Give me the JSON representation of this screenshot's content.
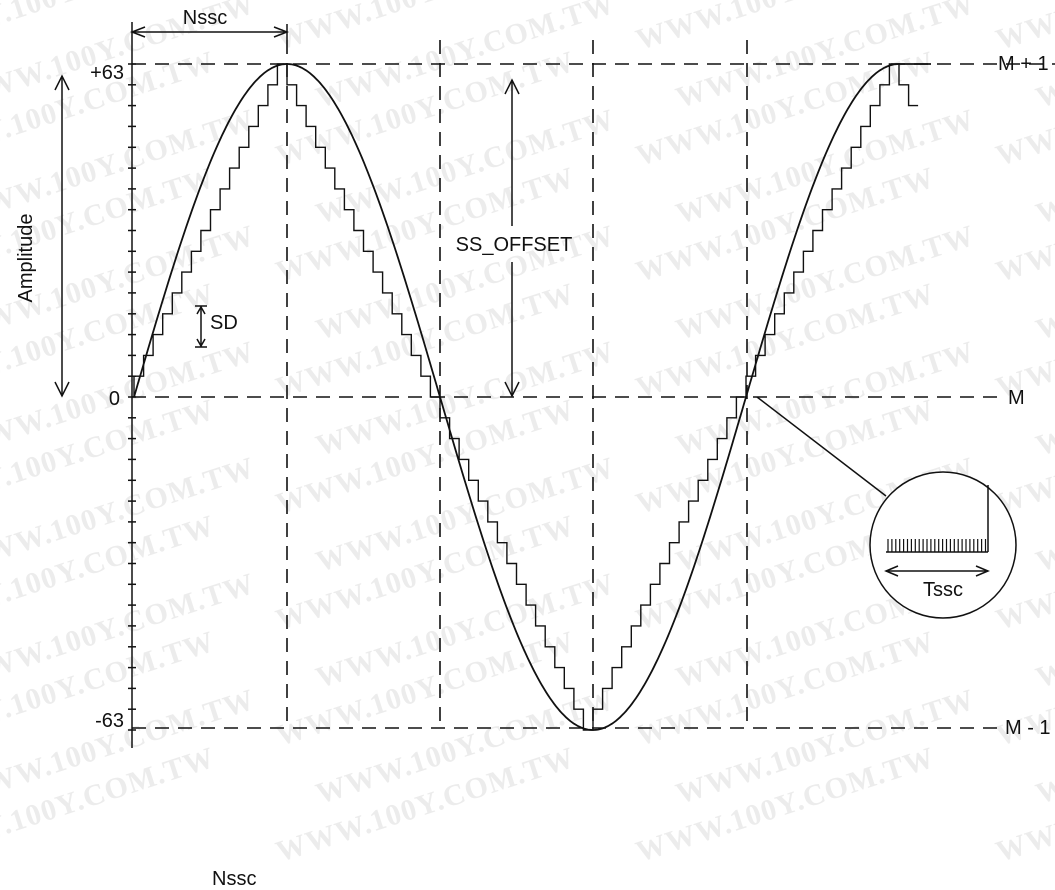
{
  "diagram": {
    "axis": {
      "y_title": "Amplitude",
      "tick_top": "+63",
      "tick_mid": "0",
      "tick_bottom": "-63"
    },
    "right_labels": {
      "top": "M + 1",
      "mid": "M",
      "bottom": "M - 1"
    },
    "annotations": {
      "period_top": "Nssc",
      "period_bottom": "Nssc",
      "offset": "SS_OFFSET",
      "step": "SD",
      "zoom_period": "Tssc"
    },
    "waveform": {
      "amplitude_max": 63,
      "amplitude_min": -63,
      "steps_per_quarter": 16
    },
    "watermark": "WWW.100Y.COM.TW",
    "colors": {
      "line": "#111111",
      "watermark": "#c8c8c8",
      "background": "#ffffff"
    }
  }
}
